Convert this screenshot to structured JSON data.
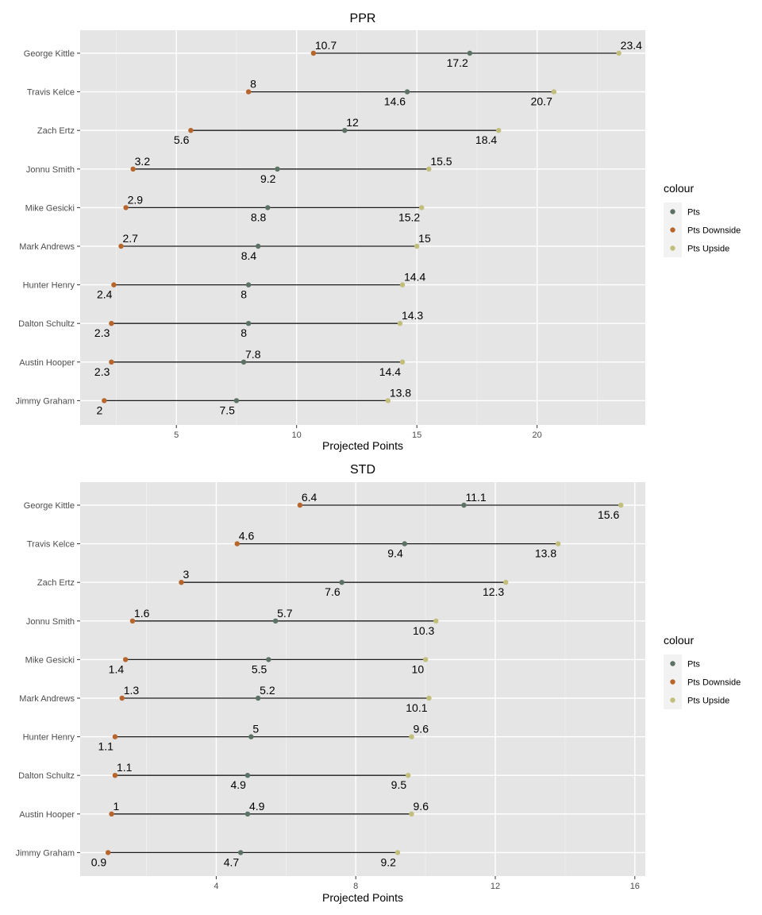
{
  "chart_data": [
    {
      "type": "dumbbell",
      "title": "PPR",
      "xlabel": "Projected Points",
      "ylabel": "",
      "xlim": [
        1.0,
        24.5
      ],
      "x_ticks": [
        5,
        10,
        15,
        20
      ],
      "grid": true,
      "legend": {
        "title": "colour",
        "placement": "right",
        "entries": [
          "Pts",
          "Pts Downside",
          "Pts Upside"
        ]
      },
      "categories": [
        "George Kittle",
        "Travis Kelce",
        "Zach Ertz",
        "Jonnu Smith",
        "Mike Gesicki",
        "Mark Andrews",
        "Hunter Henry",
        "Dalton Schultz",
        "Austin Hooper",
        "Jimmy Graham"
      ],
      "series": [
        {
          "name": "Pts",
          "color": "#5b7265",
          "values": [
            17.2,
            14.6,
            12,
            9.2,
            8.8,
            8.4,
            8,
            8,
            7.8,
            7.5
          ]
        },
        {
          "name": "Pts Downside",
          "color": "#b8652b",
          "values": [
            10.7,
            8,
            5.6,
            3.2,
            2.9,
            2.7,
            2.4,
            2.3,
            2.3,
            2
          ]
        },
        {
          "name": "Pts Upside",
          "color": "#c2be7c",
          "values": [
            23.4,
            20.7,
            18.4,
            15.5,
            15.2,
            15,
            14.4,
            14.3,
            14.4,
            13.8
          ]
        }
      ],
      "label_text": {
        "Pts": [
          "17.2",
          "14.6",
          "12",
          "9.2",
          "8.8",
          "8.4",
          "8",
          "8",
          "7.8",
          "7.5"
        ],
        "Pts Downside": [
          "10.7",
          "8",
          "5.6",
          "3.2",
          "2.9",
          "2.7",
          "2.4",
          "2.3",
          "2.3",
          "2"
        ],
        "Pts Upside": [
          "23.4",
          "20.7",
          "18.4",
          "15.5",
          "15.2",
          "15",
          "14.4",
          "14.3",
          "14.4",
          "13.8"
        ]
      }
    },
    {
      "type": "dumbbell",
      "title": "STD",
      "xlabel": "Projected Points",
      "ylabel": "",
      "xlim": [
        0.1,
        16.3
      ],
      "x_ticks": [
        4,
        8,
        12,
        16
      ],
      "grid": true,
      "legend": {
        "title": "colour",
        "placement": "right",
        "entries": [
          "Pts",
          "Pts Downside",
          "Pts Upside"
        ]
      },
      "categories": [
        "George Kittle",
        "Travis Kelce",
        "Zach Ertz",
        "Jonnu Smith",
        "Mike Gesicki",
        "Mark Andrews",
        "Hunter Henry",
        "Dalton Schultz",
        "Austin Hooper",
        "Jimmy Graham"
      ],
      "series": [
        {
          "name": "Pts",
          "color": "#5b7265",
          "values": [
            11.1,
            9.4,
            7.6,
            5.7,
            5.5,
            5.2,
            5,
            4.9,
            4.9,
            4.7
          ]
        },
        {
          "name": "Pts Downside",
          "color": "#b8652b",
          "values": [
            6.4,
            4.6,
            3,
            1.6,
            1.4,
            1.3,
            1.1,
            1.1,
            1,
            0.9
          ]
        },
        {
          "name": "Pts Upside",
          "color": "#c2be7c",
          "values": [
            15.6,
            13.8,
            12.3,
            10.3,
            10,
            10.1,
            9.6,
            9.5,
            9.6,
            9.2
          ]
        }
      ],
      "label_text": {
        "Pts": [
          "11.1",
          "9.4",
          "7.6",
          "5.7",
          "5.5",
          "5.2",
          "5",
          "4.9",
          "4.9",
          "4.7"
        ],
        "Pts Downside": [
          "6.4",
          "4.6",
          "3",
          "1.6",
          "1.4",
          "1.3",
          "1.1",
          "1.1",
          "1",
          "0.9"
        ],
        "Pts Upside": [
          "15.6",
          "13.8",
          "12.3",
          "10.3",
          "10",
          "10.1",
          "9.6",
          "9.5",
          "9.6",
          "9.2"
        ]
      }
    }
  ]
}
